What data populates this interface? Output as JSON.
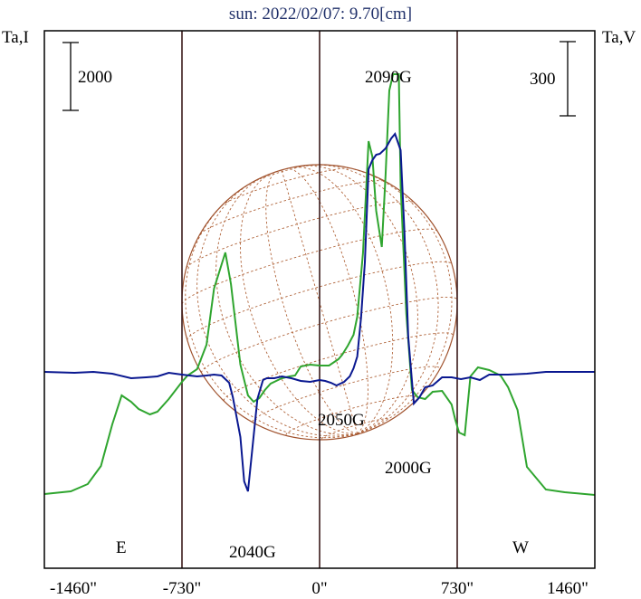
{
  "chart_data": {
    "type": "line",
    "title": "sun: 2022/02/07: 9.70[cm]",
    "ylabel_left": "Ta,I",
    "ylabel_right": "Ta,V",
    "scalebar_left": "2000",
    "scalebar_right": "300",
    "xlim": [
      -1460,
      1460
    ],
    "x_ticks": [
      -1460,
      -730,
      0,
      730,
      1460
    ],
    "x_tick_labels": [
      "-1460\"",
      "-730\"",
      "0\"",
      "730\"",
      "1460\""
    ],
    "vertical_lines": [
      -730,
      0,
      730
    ],
    "limb_labels": {
      "east": "E",
      "west": "W"
    },
    "disk_radius": 730,
    "grid": false,
    "colors": {
      "intensity": "#2fa52f",
      "polarization": "#0a1890",
      "disk": "#a0522d",
      "frame": "#000000",
      "title": "#20306a"
    },
    "series": [
      {
        "key": "intensity",
        "x": [
          -1460,
          -1320,
          -1230,
          -1160,
          -1100,
          -1050,
          -1000,
          -960,
          -900,
          -860,
          -800,
          -730,
          -700,
          -650,
          -600,
          -560,
          -500,
          -470,
          -420,
          -380,
          -350,
          -320,
          -290,
          -260,
          -230,
          -200,
          -160,
          -130,
          -100,
          -50,
          0,
          50,
          100,
          120,
          150,
          180,
          200,
          230,
          260,
          280,
          300,
          330,
          350,
          370,
          390,
          420,
          430,
          460,
          490,
          520,
          560,
          600,
          650,
          700,
          720,
          740,
          770,
          800,
          840,
          900,
          960,
          1000,
          1050,
          1100,
          1200,
          1300,
          1460
        ],
        "y": [
          -1.35,
          -1.32,
          -1.24,
          -1.04,
          -0.58,
          -0.26,
          -0.33,
          -0.41,
          -0.47,
          -0.44,
          -0.3,
          -0.11,
          -0.04,
          0.03,
          0.3,
          0.92,
          1.32,
          0.97,
          0.08,
          -0.26,
          -0.33,
          -0.29,
          -0.2,
          -0.13,
          -0.1,
          -0.07,
          -0.05,
          -0.04,
          0.06,
          0.08,
          0.07,
          0.07,
          0.14,
          0.19,
          0.29,
          0.41,
          0.61,
          1.31,
          2.55,
          2.38,
          1.78,
          1.38,
          2.18,
          3.11,
          3.29,
          3.29,
          2.06,
          0.64,
          -0.2,
          -0.28,
          -0.3,
          -0.22,
          -0.21,
          -0.36,
          -0.53,
          -0.67,
          -0.7,
          -0.05,
          0.05,
          0.02,
          -0.04,
          -0.17,
          -0.42,
          -1.05,
          -1.3,
          -1.33,
          -1.36
        ]
      },
      {
        "key": "polarization",
        "x": [
          -1460,
          -1300,
          -1200,
          -1100,
          -1000,
          -920,
          -860,
          -800,
          -730,
          -650,
          -600,
          -560,
          -520,
          -480,
          -460,
          -420,
          -400,
          -380,
          -360,
          -330,
          -300,
          -280,
          -260,
          -240,
          -200,
          -150,
          -100,
          -50,
          0,
          30,
          60,
          90,
          130,
          160,
          180,
          200,
          220,
          240,
          260,
          280,
          300,
          320,
          350,
          380,
          400,
          430,
          450,
          470,
          500,
          530,
          560,
          600,
          650,
          700,
          750,
          800,
          850,
          900,
          1000,
          1100,
          1200,
          1300,
          1460
        ],
        "y": [
          0,
          -0.01,
          0,
          -0.02,
          -0.07,
          -0.06,
          -0.05,
          -0.01,
          -0.03,
          -0.05,
          -0.04,
          -0.03,
          -0.04,
          -0.12,
          -0.28,
          -0.72,
          -1.21,
          -1.32,
          -0.92,
          -0.3,
          -0.09,
          -0.07,
          -0.07,
          -0.07,
          -0.05,
          -0.07,
          -0.1,
          -0.11,
          -0.09,
          -0.1,
          -0.12,
          -0.15,
          -0.11,
          -0.05,
          0.04,
          0.17,
          0.6,
          1.21,
          2.24,
          2.34,
          2.4,
          2.41,
          2.47,
          2.58,
          2.63,
          2.45,
          1.55,
          0.39,
          -0.35,
          -0.28,
          -0.17,
          -0.15,
          -0.06,
          -0.06,
          -0.08,
          -0.06,
          -0.09,
          -0.03,
          -0.03,
          -0.02,
          0,
          0,
          0
        ]
      }
    ],
    "annotations": [
      {
        "text": "2090G",
        "x": 300
      },
      {
        "text": "2050G",
        "x": 0
      },
      {
        "text": "2040G",
        "x": -330
      },
      {
        "text": "2000G",
        "x": 500
      }
    ]
  }
}
